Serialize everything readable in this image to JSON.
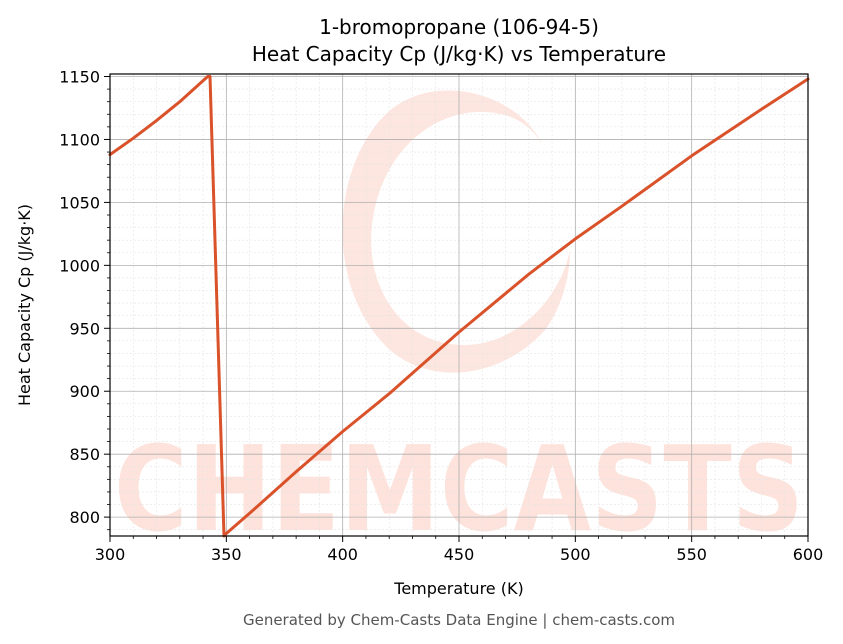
{
  "chart_data": {
    "type": "line",
    "title_line1": "1-bromopropane (106-94-5)",
    "title_line2": "Heat Capacity Cp (J/kg·K) vs Temperature",
    "xlabel": "Temperature (K)",
    "ylabel": "Heat Capacity Cp (J/kg·K)",
    "xlim": [
      300,
      600
    ],
    "ylim": [
      785,
      1152
    ],
    "x_ticks": [
      300,
      350,
      400,
      450,
      500,
      550,
      600
    ],
    "y_ticks": [
      800,
      850,
      900,
      950,
      1000,
      1050,
      1100,
      1150
    ],
    "grid": true,
    "line_color": "#d9522a",
    "series": [
      {
        "x": [
          300,
          310,
          320,
          330,
          342,
          343,
          349,
          350,
          360,
          380,
          400,
          420,
          450,
          480,
          500,
          520,
          550,
          580,
          600
        ],
        "values": [
          1088,
          1101,
          1115,
          1130,
          1150,
          1150,
          785,
          787,
          803,
          836,
          868,
          898,
          947,
          993,
          1021,
          1047,
          1087,
          1124,
          1148
        ]
      }
    ]
  },
  "watermark": {
    "text": "CHEMCASTS",
    "color": "#fde3dc"
  },
  "footer": {
    "text": "Generated by Chem-Casts Data Engine | chem-casts.com"
  }
}
